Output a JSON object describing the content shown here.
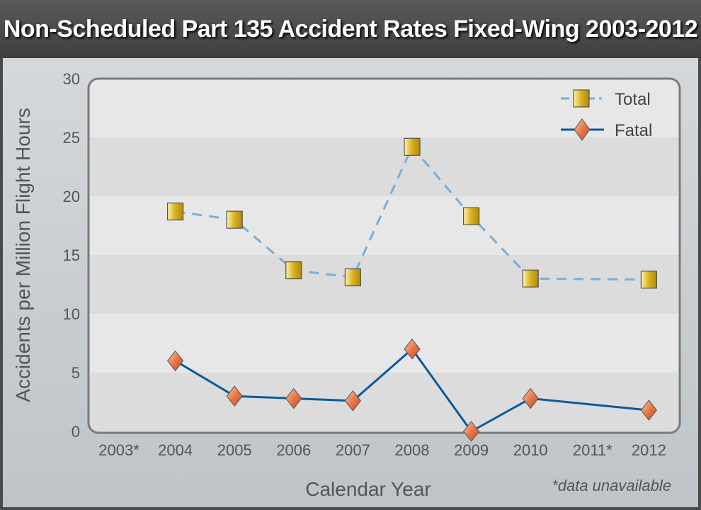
{
  "title": "Non-Scheduled Part 135 Accident Rates Fixed-Wing 2003-2012",
  "footnote": "*data unavailable",
  "chart_data": {
    "type": "line",
    "title": "Non-Scheduled Part 135 Accident Rates Fixed-Wing 2003-2012",
    "xlabel": "Calendar Year",
    "ylabel": "Accidents per Million Flight Hours",
    "categories": [
      "2003*",
      "2004",
      "2005",
      "2006",
      "2007",
      "2008",
      "2009",
      "2010",
      "2011*",
      "2012"
    ],
    "ylim": [
      0,
      30
    ],
    "yticks": [
      "0",
      "5",
      "10",
      "15",
      "20",
      "25",
      "30"
    ],
    "legend_position": "top-right",
    "series": [
      {
        "name": "Total",
        "style": "dashed",
        "color": "#7aaed6",
        "marker": "square",
        "values": [
          null,
          18.7,
          18.0,
          13.7,
          13.1,
          24.2,
          18.3,
          13.0,
          null,
          12.9
        ]
      },
      {
        "name": "Fatal",
        "style": "solid",
        "color": "#0a5a9c",
        "marker": "diamond",
        "values": [
          null,
          6.0,
          3.0,
          2.8,
          2.6,
          7.0,
          0.0,
          2.8,
          null,
          1.8
        ]
      }
    ]
  }
}
